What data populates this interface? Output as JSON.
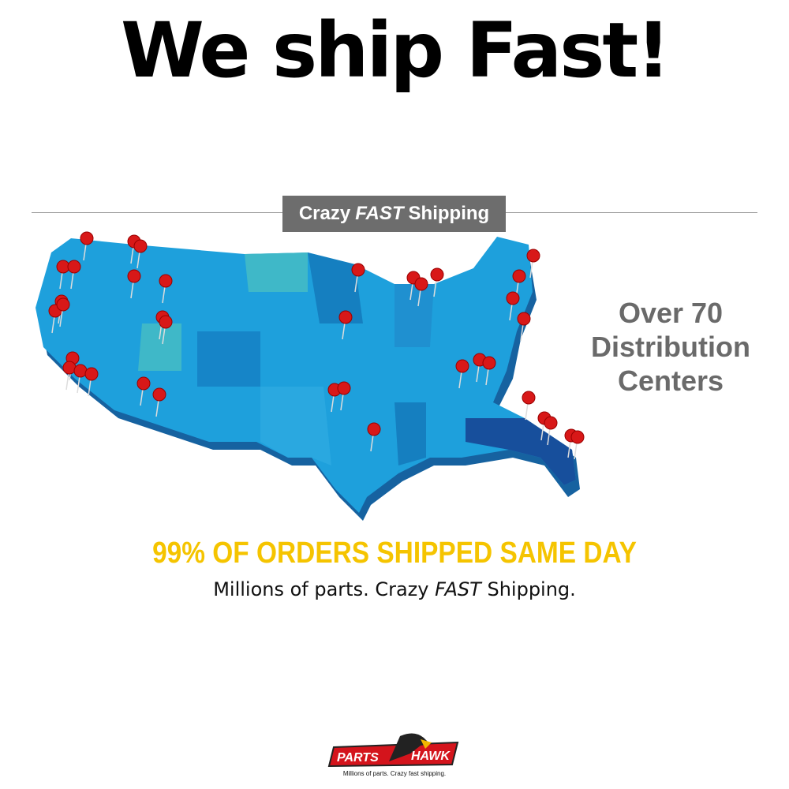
{
  "headline": "We ship Fast!",
  "banner": {
    "prefix": "Crazy",
    "emphasis": "FAST",
    "suffix": "Shipping"
  },
  "distribution": {
    "line1": "Over 70",
    "line2": "Distribution",
    "line3": "Centers"
  },
  "same_day": "99% OF ORDERS SHIPPED SAME DAY",
  "tagline": {
    "prefix": "Millions of parts. Crazy",
    "emphasis": "FAST",
    "suffix": "Shipping."
  },
  "logo": {
    "left": "PARTS",
    "right": "HAWK",
    "slogan": "Millions of parts. Crazy fast shipping."
  },
  "colors": {
    "map_blue": "#1ea0dc",
    "pin_red": "#d81818",
    "highlight_yellow": "#f5c400",
    "banner_gray": "#6d6d6d"
  }
}
